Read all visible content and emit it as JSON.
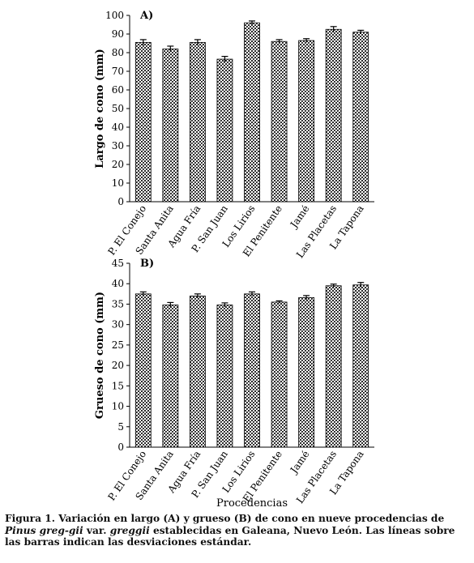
{
  "chart_data": [
    {
      "type": "bar",
      "panel_label": "A)",
      "ylabel": "Largo de cono (mm)",
      "xlabel": "",
      "categories": [
        "P. El Conejo",
        "Santa Anita",
        "Agua Fría",
        "P. San Juan",
        "Los Lirios",
        "El Penitente",
        "Jamé",
        "Las Placetas",
        "La Tapona"
      ],
      "values": [
        85.5,
        82,
        85.5,
        76.5,
        96,
        86,
        86.5,
        92.5,
        91
      ],
      "errors": [
        1.5,
        1.5,
        1.5,
        1.5,
        1,
        1,
        1,
        1.5,
        1
      ],
      "ylim": [
        0,
        100
      ],
      "yticks": [
        0,
        10,
        20,
        30,
        40,
        50,
        60,
        70,
        80,
        90,
        100
      ],
      "grid": false
    },
    {
      "type": "bar",
      "panel_label": "B)",
      "ylabel": "Grueso de cono (mm)",
      "xlabel": "Procedencias",
      "categories": [
        "P. El Conejo",
        "Santa Anita",
        "Agua Fría",
        "P. San Juan",
        "Los Lirios",
        "El Penitente",
        "Jamé",
        "Las Placetas",
        "La Tapona"
      ],
      "values": [
        37.5,
        34.8,
        37,
        34.8,
        37.5,
        35.5,
        36.6,
        39.5,
        39.7
      ],
      "errors": [
        0.5,
        0.6,
        0.5,
        0.5,
        0.5,
        0.3,
        0.5,
        0.4,
        0.6
      ],
      "ylim": [
        0,
        45
      ],
      "yticks": [
        0,
        5,
        10,
        15,
        20,
        25,
        30,
        35,
        40,
        45
      ],
      "grid": false
    }
  ],
  "caption": {
    "part1": "Figura 1. Variación en largo (A) y grueso (B) de cono en nueve procedencias de ",
    "italic1": "Pinus greg-gii",
    "part2": " var. ",
    "italic2": "greggii",
    "part3": " establecidas en Galeana, Nuevo León. Las líneas sobre las barras indican las desviaciones estándar."
  },
  "colors": {
    "bar_fill": "#3a3a3a",
    "bar_pattern_bg": "#ffffff",
    "axis": "#000000"
  }
}
